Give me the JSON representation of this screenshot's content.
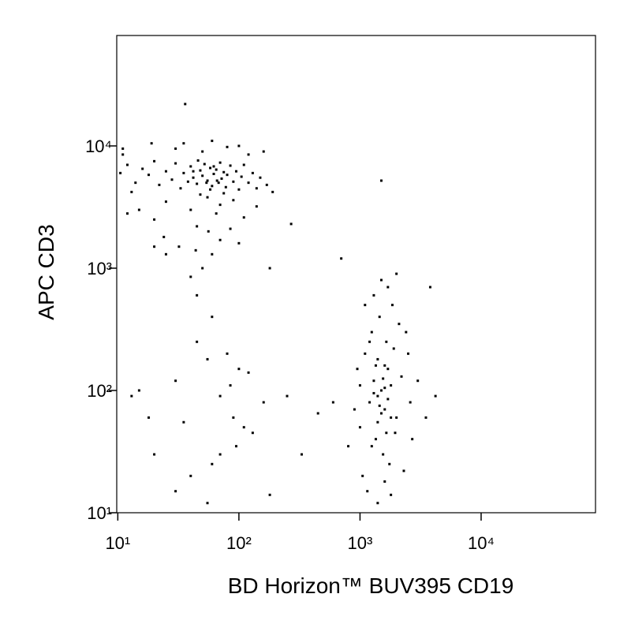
{
  "chart_data": {
    "type": "scatter",
    "xlabel": "BD Horizon™ BUV395 CD19",
    "ylabel": "APC  CD3",
    "xscale": "log",
    "yscale": "log",
    "color": "#000000",
    "xlim": [
      9.8,
      88000
    ],
    "ylim": [
      10,
      80000
    ],
    "xticks": [
      {
        "value": 10,
        "label": "10¹"
      },
      {
        "value": 100,
        "label": "10²"
      },
      {
        "value": 1000,
        "label": "10³"
      },
      {
        "value": 10000,
        "label": "10⁴"
      }
    ],
    "yticks": [
      {
        "value": 10,
        "label": "10¹"
      },
      {
        "value": 100,
        "label": "10²"
      },
      {
        "value": 1000,
        "label": "10³"
      },
      {
        "value": 10000,
        "label": "10⁴"
      }
    ],
    "x": [
      12,
      14,
      11,
      13,
      16,
      18,
      20,
      22,
      25,
      28,
      30,
      33,
      35,
      38,
      40,
      42,
      45,
      48,
      50,
      52,
      55,
      58,
      60,
      62,
      65,
      68,
      70,
      72,
      75,
      78,
      80,
      85,
      90,
      95,
      100,
      105,
      110,
      120,
      130,
      140,
      150,
      170,
      190,
      15,
      20,
      25,
      30,
      35,
      40,
      45,
      50,
      55,
      60,
      65,
      70,
      80,
      90,
      100,
      110,
      120,
      140,
      160,
      24,
      32,
      44,
      56,
      70,
      85,
      100,
      12,
      10.5,
      11,
      19,
      36,
      50,
      40,
      60,
      75,
      48,
      54,
      62,
      66,
      58,
      46,
      42,
      1000,
      1200,
      1300,
      1400,
      1500,
      1600,
      1700,
      1800,
      2000,
      2200,
      1100,
      1250,
      1450,
      1650,
      1850,
      2100,
      2500,
      1350,
      1550,
      1750,
      1950,
      900,
      950,
      1050,
      1150,
      1400,
      1600,
      1800,
      2300,
      2600,
      3000,
      3500,
      4200,
      800,
      1700,
      1300,
      1500,
      2000,
      1200,
      1400,
      1600,
      1800,
      1400,
      1500,
      1300,
      1600,
      1700,
      1450,
      1550,
      1650,
      1250,
      2400,
      3800,
      1500,
      700,
      1100,
      1900,
      2700,
      1000,
      1350,
      20,
      25,
      45,
      60,
      30,
      45,
      55,
      70,
      80,
      90,
      100,
      110,
      120,
      70,
      60,
      40,
      30,
      20,
      18,
      15,
      13,
      35,
      85,
      95,
      130,
      160,
      180,
      270,
      180,
      250,
      330,
      450,
      600,
      55
    ],
    "y": [
      7000,
      5000,
      8500,
      4200,
      6500,
      5800,
      7500,
      4800,
      6200,
      5300,
      7200,
      4500,
      6000,
      5100,
      6800,
      5500,
      4900,
      6300,
      5700,
      7100,
      5200,
      6600,
      4700,
      5900,
      6400,
      5000,
      7300,
      5400,
      6100,
      4600,
      5800,
      6900,
      5100,
      6200,
      4400,
      5600,
      7000,
      5000,
      6000,
      4500,
      5500,
      4800,
      4200,
      3000,
      2500,
      3500,
      9500,
      10500,
      3000,
      2200,
      9000,
      3800,
      11000,
      2800,
      3300,
      9800,
      3600,
      10000,
      2600,
      8500,
      3200,
      9000,
      1800,
      1500,
      1400,
      2000,
      1700,
      2100,
      1600,
      2800,
      6000,
      9500,
      10500,
      22000,
      1000,
      850,
      1300,
      4100,
      4000,
      5000,
      6800,
      5200,
      4400,
      7600,
      6200,
      50,
      80,
      120,
      90,
      100,
      70,
      150,
      110,
      60,
      130,
      200,
      300,
      400,
      250,
      500,
      350,
      200,
      40,
      30,
      25,
      45,
      70,
      150,
      20,
      15,
      12,
      18,
      14,
      22,
      80,
      120,
      60,
      90,
      35,
      700,
      600,
      800,
      900,
      250,
      180,
      160,
      60,
      55,
      65,
      95,
      105,
      85,
      75,
      125,
      45,
      35,
      300,
      700,
      5200,
      1200,
      500,
      220,
      40,
      110,
      160,
      1500,
      1300,
      600,
      400,
      120,
      250,
      180,
      90,
      200,
      60,
      150,
      50,
      140,
      30,
      25,
      20,
      15,
      30,
      60,
      100,
      90,
      55,
      110,
      35,
      45,
      80,
      1000,
      2300,
      14,
      90,
      30,
      65,
      80,
      12
    ]
  }
}
